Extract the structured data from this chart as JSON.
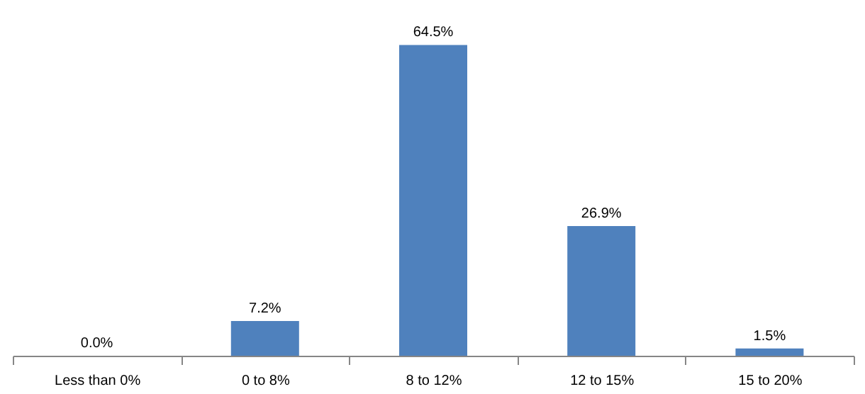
{
  "chart_data": {
    "type": "bar",
    "categories": [
      "Less than 0%",
      "0 to 8%",
      "8 to 12%",
      "12 to 15%",
      "15 to 20%"
    ],
    "values": [
      0.0,
      7.2,
      64.5,
      26.9,
      1.5
    ],
    "color": "#4f81bd",
    "value_labels": [
      "0.0%",
      "7.2%",
      "64.5%",
      "26.9%",
      "1.5%"
    ],
    "grid": false
  }
}
